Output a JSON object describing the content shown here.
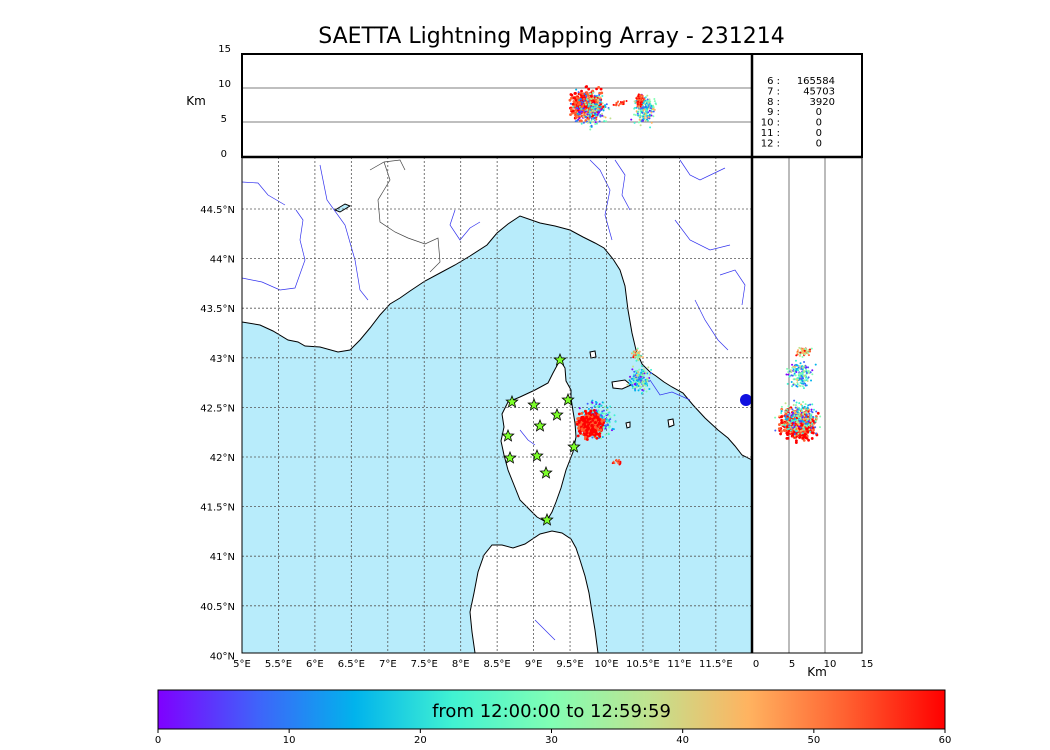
{
  "title": "SAETTA Lightning Mapping Array - 231214",
  "altitude_panel": {
    "ylabel": "Km",
    "ticks": [
      "15",
      "10",
      "5",
      "0"
    ]
  },
  "side_panel": {
    "xlabel": "Km",
    "ticks": [
      "0",
      "5",
      "10",
      "15"
    ]
  },
  "station_counts": [
    {
      "label": "6 :",
      "value": "165584",
      "color": "#000000"
    },
    {
      "label": "7 :",
      "value": "45703",
      "color": "#ff0000"
    },
    {
      "label": "8 :",
      "value": "3920",
      "color": "#000000"
    },
    {
      "label": "9 :",
      "value": "0",
      "color": "#000000"
    },
    {
      "label": "10 :",
      "value": "0",
      "color": "#000000"
    },
    {
      "label": "11 :",
      "value": "0",
      "color": "#000000"
    },
    {
      "label": "12 :",
      "value": "0",
      "color": "#000000"
    }
  ],
  "map": {
    "lon_ticks": [
      "5°E",
      "5.5°E",
      "6°E",
      "6.5°E",
      "7°E",
      "7.5°E",
      "8°E",
      "8.5°E",
      "9°E",
      "9.5°E",
      "10°E",
      "10.5°E",
      "11°E",
      "11.5°E"
    ],
    "lat_ticks": [
      "44.5°N",
      "44°N",
      "43.5°N",
      "43°N",
      "42.5°N",
      "42°N",
      "41.5°N",
      "41°N",
      "40.5°N",
      "40°N"
    ],
    "sea_color": "#b8ecfb",
    "land_color": "#ffffff",
    "river_color": "#3333ee"
  },
  "colorbar": {
    "caption": "from 12:00:00 to 12:59:59",
    "ticks": [
      "0",
      "10",
      "20",
      "30",
      "40",
      "50",
      "60"
    ],
    "colors": [
      "#7f00ff",
      "#4062fa",
      "#01b3ec",
      "#41f2d2",
      "#81feb4",
      "#c1e28f",
      "#ffb360",
      "#ff6030",
      "#ff0000"
    ]
  }
}
